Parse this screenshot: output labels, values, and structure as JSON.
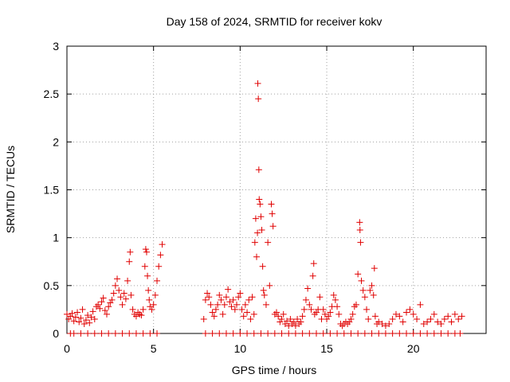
{
  "chart_data": {
    "type": "scatter",
    "title": "Day 158 of 2024, SRMTID for receiver kokv",
    "xlabel": "GPS time / hours",
    "ylabel": "SRMTID / TECUs",
    "xlim": [
      0,
      24.2
    ],
    "ylim": [
      0,
      3
    ],
    "xticks": [
      0,
      5,
      10,
      15,
      20
    ],
    "xtick_labels": [
      "0",
      "5",
      "10",
      "15",
      "20"
    ],
    "yticks": [
      0,
      0.5,
      1,
      1.5,
      2,
      2.5,
      3
    ],
    "ytick_labels": [
      "0",
      "0.5",
      "1",
      "1.5",
      "2",
      "2.5",
      "3"
    ],
    "grid": true,
    "marker": "+",
    "series": [
      {
        "name": "SRMTID",
        "color": "#e00000",
        "points": [
          [
            0.0,
            0.2
          ],
          [
            0.1,
            0.15
          ],
          [
            0.2,
            0.18
          ],
          [
            0.3,
            0.21
          ],
          [
            0.4,
            0.13
          ],
          [
            0.5,
            0.17
          ],
          [
            0.6,
            0.22
          ],
          [
            0.7,
            0.12
          ],
          [
            0.8,
            0.16
          ],
          [
            0.9,
            0.25
          ],
          [
            1.0,
            0.1
          ],
          [
            1.1,
            0.14
          ],
          [
            1.2,
            0.19
          ],
          [
            1.3,
            0.11
          ],
          [
            1.4,
            0.17
          ],
          [
            1.5,
            0.23
          ],
          [
            1.6,
            0.15
          ],
          [
            1.7,
            0.28
          ],
          [
            1.8,
            0.3
          ],
          [
            1.9,
            0.26
          ],
          [
            2.0,
            0.33
          ],
          [
            2.1,
            0.37
          ],
          [
            2.2,
            0.24
          ],
          [
            2.3,
            0.2
          ],
          [
            2.4,
            0.28
          ],
          [
            2.5,
            0.32
          ],
          [
            2.6,
            0.35
          ],
          [
            2.7,
            0.42
          ],
          [
            2.8,
            0.5
          ],
          [
            2.9,
            0.57
          ],
          [
            3.0,
            0.45
          ],
          [
            3.1,
            0.38
          ],
          [
            3.2,
            0.3
          ],
          [
            3.3,
            0.42
          ],
          [
            3.4,
            0.36
          ],
          [
            3.5,
            0.55
          ],
          [
            3.6,
            0.75
          ],
          [
            3.65,
            0.85
          ],
          [
            3.7,
            0.4
          ],
          [
            3.8,
            0.25
          ],
          [
            3.9,
            0.2
          ],
          [
            4.0,
            0.18
          ],
          [
            4.1,
            0.22
          ],
          [
            4.2,
            0.2
          ],
          [
            4.3,
            0.19
          ],
          [
            4.4,
            0.25
          ],
          [
            4.5,
            0.7
          ],
          [
            4.55,
            0.88
          ],
          [
            4.6,
            0.85
          ],
          [
            4.65,
            0.6
          ],
          [
            4.7,
            0.45
          ],
          [
            4.75,
            0.35
          ],
          [
            4.8,
            0.28
          ],
          [
            4.9,
            0.25
          ],
          [
            5.0,
            0.3
          ],
          [
            5.1,
            0.4
          ],
          [
            5.2,
            0.55
          ],
          [
            5.3,
            0.7
          ],
          [
            5.4,
            0.82
          ],
          [
            5.5,
            0.93
          ],
          [
            7.9,
            0.15
          ],
          [
            8.0,
            0.35
          ],
          [
            8.1,
            0.42
          ],
          [
            8.2,
            0.38
          ],
          [
            8.3,
            0.3
          ],
          [
            8.4,
            0.22
          ],
          [
            8.5,
            0.18
          ],
          [
            8.6,
            0.25
          ],
          [
            8.7,
            0.3
          ],
          [
            8.8,
            0.4
          ],
          [
            8.9,
            0.35
          ],
          [
            9.0,
            0.2
          ],
          [
            9.1,
            0.3
          ],
          [
            9.2,
            0.38
          ],
          [
            9.3,
            0.46
          ],
          [
            9.4,
            0.33
          ],
          [
            9.5,
            0.28
          ],
          [
            9.6,
            0.35
          ],
          [
            9.7,
            0.25
          ],
          [
            9.8,
            0.3
          ],
          [
            9.9,
            0.38
          ],
          [
            10.0,
            0.42
          ],
          [
            10.1,
            0.25
          ],
          [
            10.2,
            0.18
          ],
          [
            10.3,
            0.3
          ],
          [
            10.4,
            0.22
          ],
          [
            10.5,
            0.35
          ],
          [
            10.6,
            0.15
          ],
          [
            10.7,
            0.38
          ],
          [
            10.8,
            0.2
          ],
          [
            10.85,
            0.95
          ],
          [
            10.9,
            1.2
          ],
          [
            10.95,
            0.8
          ],
          [
            11.0,
            1.05
          ],
          [
            11.02,
            2.61
          ],
          [
            11.05,
            2.45
          ],
          [
            11.08,
            1.71
          ],
          [
            11.1,
            1.4
          ],
          [
            11.15,
            1.35
          ],
          [
            11.2,
            1.22
          ],
          [
            11.25,
            1.08
          ],
          [
            11.3,
            0.7
          ],
          [
            11.35,
            0.45
          ],
          [
            11.4,
            0.4
          ],
          [
            11.5,
            0.3
          ],
          [
            11.6,
            0.95
          ],
          [
            11.7,
            0.5
          ],
          [
            11.8,
            1.35
          ],
          [
            11.85,
            1.25
          ],
          [
            11.9,
            1.12
          ],
          [
            12.0,
            0.2
          ],
          [
            12.1,
            0.22
          ],
          [
            12.2,
            0.18
          ],
          [
            12.3,
            0.12
          ],
          [
            12.4,
            0.15
          ],
          [
            12.5,
            0.2
          ],
          [
            12.6,
            0.1
          ],
          [
            12.7,
            0.13
          ],
          [
            12.8,
            0.08
          ],
          [
            12.9,
            0.15
          ],
          [
            13.0,
            0.1
          ],
          [
            13.1,
            0.12
          ],
          [
            13.2,
            0.08
          ],
          [
            13.3,
            0.15
          ],
          [
            13.4,
            0.1
          ],
          [
            13.5,
            0.12
          ],
          [
            13.6,
            0.18
          ],
          [
            13.7,
            0.25
          ],
          [
            13.8,
            0.35
          ],
          [
            13.9,
            0.47
          ],
          [
            14.0,
            0.3
          ],
          [
            14.1,
            0.25
          ],
          [
            14.2,
            0.6
          ],
          [
            14.25,
            0.73
          ],
          [
            14.3,
            0.2
          ],
          [
            14.4,
            0.22
          ],
          [
            14.5,
            0.25
          ],
          [
            14.6,
            0.38
          ],
          [
            14.7,
            0.15
          ],
          [
            14.8,
            0.25
          ],
          [
            14.9,
            0.2
          ],
          [
            15.0,
            0.15
          ],
          [
            15.1,
            0.18
          ],
          [
            15.2,
            0.22
          ],
          [
            15.3,
            0.28
          ],
          [
            15.4,
            0.4
          ],
          [
            15.5,
            0.35
          ],
          [
            15.6,
            0.28
          ],
          [
            15.7,
            0.2
          ],
          [
            15.8,
            0.1
          ],
          [
            15.9,
            0.08
          ],
          [
            16.0,
            0.1
          ],
          [
            16.1,
            0.12
          ],
          [
            16.2,
            0.1
          ],
          [
            16.3,
            0.12
          ],
          [
            16.4,
            0.15
          ],
          [
            16.5,
            0.2
          ],
          [
            16.6,
            0.28
          ],
          [
            16.7,
            0.3
          ],
          [
            16.8,
            0.62
          ],
          [
            16.9,
            1.16
          ],
          [
            16.92,
            1.08
          ],
          [
            16.95,
            0.95
          ],
          [
            17.0,
            0.55
          ],
          [
            17.1,
            0.45
          ],
          [
            17.2,
            0.38
          ],
          [
            17.3,
            0.25
          ],
          [
            17.4,
            0.15
          ],
          [
            17.5,
            0.45
          ],
          [
            17.6,
            0.5
          ],
          [
            17.7,
            0.4
          ],
          [
            17.75,
            0.68
          ],
          [
            17.8,
            0.18
          ],
          [
            17.9,
            0.1
          ],
          [
            18.0,
            0.12
          ],
          [
            18.2,
            0.1
          ],
          [
            18.4,
            0.08
          ],
          [
            18.6,
            0.1
          ],
          [
            18.8,
            0.15
          ],
          [
            19.0,
            0.2
          ],
          [
            19.2,
            0.18
          ],
          [
            19.4,
            0.12
          ],
          [
            19.6,
            0.22
          ],
          [
            19.8,
            0.25
          ],
          [
            20.0,
            0.2
          ],
          [
            20.2,
            0.15
          ],
          [
            20.4,
            0.3
          ],
          [
            20.6,
            0.1
          ],
          [
            20.8,
            0.12
          ],
          [
            21.0,
            0.15
          ],
          [
            21.2,
            0.2
          ],
          [
            21.4,
            0.12
          ],
          [
            21.6,
            0.1
          ],
          [
            21.8,
            0.15
          ],
          [
            22.0,
            0.18
          ],
          [
            22.2,
            0.12
          ],
          [
            22.4,
            0.2
          ],
          [
            22.6,
            0.15
          ],
          [
            22.8,
            0.18
          ],
          [
            0.2,
            0.0
          ],
          [
            0.4,
            0.0
          ],
          [
            0.8,
            0.0
          ],
          [
            1.2,
            0.0
          ],
          [
            1.6,
            0.0
          ],
          [
            2.0,
            0.0
          ],
          [
            2.4,
            0.0
          ],
          [
            2.8,
            0.0
          ],
          [
            3.2,
            0.0
          ],
          [
            3.6,
            0.0
          ],
          [
            4.0,
            0.0
          ],
          [
            4.4,
            0.0
          ],
          [
            4.8,
            0.0
          ],
          [
            5.2,
            0.0
          ],
          [
            8.0,
            0.0
          ],
          [
            8.4,
            0.0
          ],
          [
            8.8,
            0.0
          ],
          [
            9.2,
            0.0
          ],
          [
            9.6,
            0.0
          ],
          [
            10.0,
            0.0
          ],
          [
            10.4,
            0.0
          ],
          [
            10.8,
            0.0
          ],
          [
            11.2,
            0.0
          ],
          [
            11.6,
            0.0
          ],
          [
            12.0,
            0.0
          ],
          [
            12.4,
            0.0
          ],
          [
            12.8,
            0.0
          ],
          [
            13.2,
            0.0
          ],
          [
            13.6,
            0.0
          ],
          [
            14.0,
            0.0
          ],
          [
            14.4,
            0.0
          ],
          [
            14.8,
            0.0
          ],
          [
            15.2,
            0.0
          ],
          [
            15.6,
            0.0
          ],
          [
            16.0,
            0.0
          ],
          [
            16.4,
            0.0
          ],
          [
            16.8,
            0.0
          ],
          [
            17.2,
            0.0
          ],
          [
            17.6,
            0.0
          ],
          [
            18.0,
            0.0
          ],
          [
            18.4,
            0.0
          ],
          [
            18.8,
            0.0
          ],
          [
            19.2,
            0.0
          ],
          [
            19.6,
            0.0
          ],
          [
            20.0,
            0.0
          ],
          [
            20.4,
            0.0
          ],
          [
            20.8,
            0.0
          ],
          [
            21.2,
            0.0
          ],
          [
            21.6,
            0.0
          ],
          [
            22.0,
            0.0
          ],
          [
            22.4,
            0.0
          ],
          [
            22.7,
            0.0
          ]
        ]
      }
    ]
  }
}
